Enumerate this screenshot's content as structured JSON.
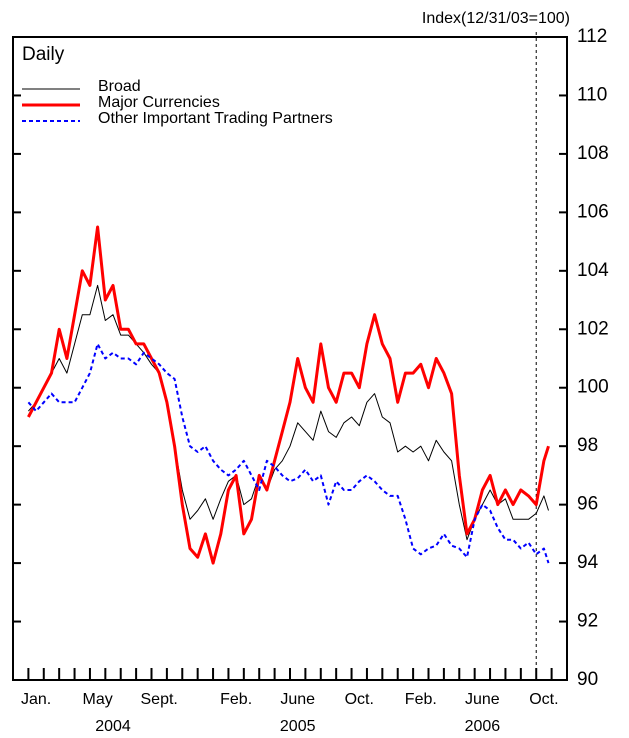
{
  "chart_data": {
    "type": "line",
    "annotations": [
      "Index(12/31/03=100)",
      "Daily"
    ],
    "x": [
      0,
      0.5,
      1,
      1.5,
      2,
      2.5,
      3,
      3.5,
      4,
      4.5,
      5,
      5.5,
      6,
      6.5,
      7,
      7.5,
      8,
      8.5,
      9,
      9.5,
      10,
      10.5,
      11,
      11.5,
      12,
      12.5,
      13,
      13.5,
      14,
      14.5,
      15,
      15.5,
      16,
      16.5,
      17,
      17.5,
      18,
      18.5,
      19,
      19.5,
      20,
      20.5,
      21,
      21.5,
      22,
      22.5,
      23,
      23.5,
      24,
      24.5,
      25,
      25.5,
      26,
      26.5,
      27,
      27.5,
      28,
      28.5,
      29,
      29.5,
      30,
      30.5,
      31,
      31.5,
      32,
      32.5,
      33,
      33.5,
      33.8
    ],
    "series": [
      {
        "name": "Broad",
        "color": "#000000",
        "width": 1,
        "dash": false,
        "values": [
          99.2,
          99.5,
          100,
          100.5,
          101,
          100.5,
          101.5,
          102.5,
          102.5,
          103.5,
          102.3,
          102.5,
          101.8,
          101.8,
          101.5,
          101.2,
          100.8,
          100.5,
          99.5,
          98,
          96.5,
          95.5,
          95.8,
          96.2,
          95.5,
          96.2,
          96.8,
          97,
          96,
          96.2,
          97,
          96.5,
          97.2,
          97.5,
          98,
          98.8,
          98.5,
          98.2,
          99.2,
          98.5,
          98.3,
          98.8,
          99,
          98.7,
          99.5,
          99.8,
          99,
          98.8,
          97.8,
          98,
          97.8,
          98,
          97.5,
          98.2,
          97.8,
          97.5,
          96,
          94.8,
          95.5,
          96,
          96.5,
          96,
          96.2,
          95.5,
          95.5,
          95.5,
          95.7,
          96.3,
          95.8
        ]
      },
      {
        "name": "Major Currencies",
        "color": "#ff0000",
        "width": 3,
        "dash": false,
        "values": [
          99,
          99.5,
          100,
          100.5,
          102,
          101,
          102.5,
          104,
          103.5,
          105.5,
          103,
          103.5,
          102,
          102,
          101.5,
          101.5,
          101,
          100.5,
          99.5,
          98,
          96,
          94.5,
          94.2,
          95,
          94,
          95,
          96.5,
          97,
          95,
          95.5,
          97,
          96.5,
          97.5,
          98.5,
          99.5,
          101,
          100,
          99.5,
          101.5,
          100,
          99.5,
          100.5,
          100.5,
          100,
          101.5,
          102.5,
          101.5,
          101,
          99.5,
          100.5,
          100.5,
          100.8,
          100,
          101,
          100.5,
          99.8,
          97,
          95,
          95.5,
          96.5,
          97,
          96,
          96.5,
          96,
          96.5,
          96.3,
          96,
          97.5,
          98
        ]
      },
      {
        "name": "Other Important Trading Partners",
        "color": "#0000ff",
        "width": 2,
        "dash": true,
        "values": [
          99.5,
          99.2,
          99.5,
          99.8,
          99.5,
          99.5,
          99.5,
          100,
          100.5,
          101.5,
          101,
          101.2,
          101,
          101,
          100.8,
          101.2,
          101,
          100.8,
          100.5,
          100.3,
          99,
          98,
          97.8,
          98,
          97.5,
          97.2,
          97,
          97.2,
          97.5,
          97,
          96.5,
          97.5,
          97.3,
          97,
          96.8,
          96.9,
          97.2,
          96.8,
          97,
          96,
          96.8,
          96.5,
          96.5,
          96.8,
          97,
          96.8,
          96.5,
          96.3,
          96.3,
          95.5,
          94.5,
          94.3,
          94.5,
          94.6,
          95,
          94.6,
          94.5,
          94.2,
          95.5,
          96,
          95.8,
          95.2,
          94.8,
          94.8,
          94.5,
          94.7,
          94.3,
          94.5,
          94
        ]
      }
    ],
    "xlim": [
      -1,
      35
    ],
    "xticks": [
      {
        "value": 0,
        "label": "Jan."
      },
      {
        "value": 4,
        "label": "May"
      },
      {
        "value": 8,
        "label": "Sept."
      },
      {
        "value": 13,
        "label": "Feb."
      },
      {
        "value": 17,
        "label": "June"
      },
      {
        "value": 21,
        "label": "Oct."
      },
      {
        "value": 25,
        "label": "Feb."
      },
      {
        "value": 29,
        "label": "June"
      },
      {
        "value": 33,
        "label": "Oct."
      }
    ],
    "year_labels": [
      {
        "value": 5,
        "label": "2004"
      },
      {
        "value": 17,
        "label": "2005"
      },
      {
        "value": 29,
        "label": "2006"
      }
    ],
    "ylim": [
      90,
      112
    ],
    "yticks": [
      90,
      92,
      94,
      96,
      98,
      100,
      102,
      104,
      106,
      108,
      110,
      112
    ],
    "marker_line_x": 33,
    "legend": "upper left"
  }
}
